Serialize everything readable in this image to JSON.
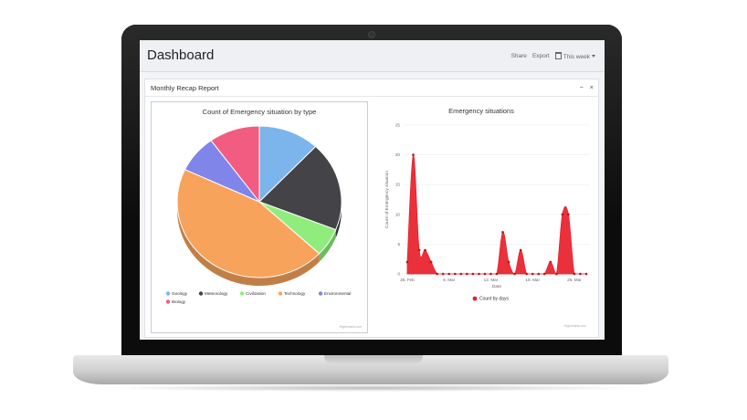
{
  "header": {
    "title": "Dashboard",
    "share": "Share",
    "export": "Export",
    "range": "This week"
  },
  "panel": {
    "title": "Monthly Recap Report",
    "minimize": "−",
    "close": "×"
  },
  "credits": "Highcharts.com",
  "chart_data": [
    {
      "type": "pie",
      "title": "Count of Emergency situation by type",
      "labels": [
        "Geology",
        "Meteorology",
        "Civilization",
        "Technology",
        "Environmental",
        "Biology"
      ],
      "values": [
        12,
        19,
        6,
        45,
        8,
        10
      ],
      "colors": [
        "#7cb5ec",
        "#434348",
        "#90ed7d",
        "#f7a35c",
        "#8085e9",
        "#f15c80"
      ]
    },
    {
      "type": "area",
      "title": "Emergency situations",
      "xlabel": "Date",
      "ylabel": "Count of Emergency situation",
      "ylim": [
        0,
        25
      ],
      "yticks": [
        0,
        5,
        10,
        15,
        20,
        25
      ],
      "xticks": [
        {
          "label": "26. Feb",
          "day": 0
        },
        {
          "label": "5. Mar",
          "day": 7
        },
        {
          "label": "12. Mar",
          "day": 14
        },
        {
          "label": "19. Mar",
          "day": 21
        },
        {
          "label": "26. Mar",
          "day": 28
        }
      ],
      "series": [
        {
          "name": "Count by days",
          "color": "#e8202a",
          "x": [
            "26. Feb",
            "27. Feb",
            "28. Feb",
            "1. Mar",
            "2. Mar",
            "3. Mar",
            "4. Mar",
            "5. Mar",
            "6. Mar",
            "7. Mar",
            "8. Mar",
            "9. Mar",
            "10. Mar",
            "11. Mar",
            "12. Mar",
            "13. Mar",
            "14. Mar",
            "15. Mar",
            "16. Mar",
            "17. Mar",
            "18. Mar",
            "19. Mar",
            "20. Mar",
            "21. Mar",
            "22. Mar",
            "23. Mar",
            "24. Mar",
            "25. Mar",
            "26. Mar",
            "27. Mar",
            "28. Mar"
          ],
          "values": [
            2,
            20,
            4,
            4,
            2,
            0,
            0,
            0,
            0,
            0,
            0,
            0,
            0,
            0,
            0,
            0,
            7,
            2,
            0,
            4,
            0,
            0,
            0,
            0,
            2,
            0,
            10,
            10,
            0,
            0,
            0
          ]
        }
      ]
    }
  ]
}
